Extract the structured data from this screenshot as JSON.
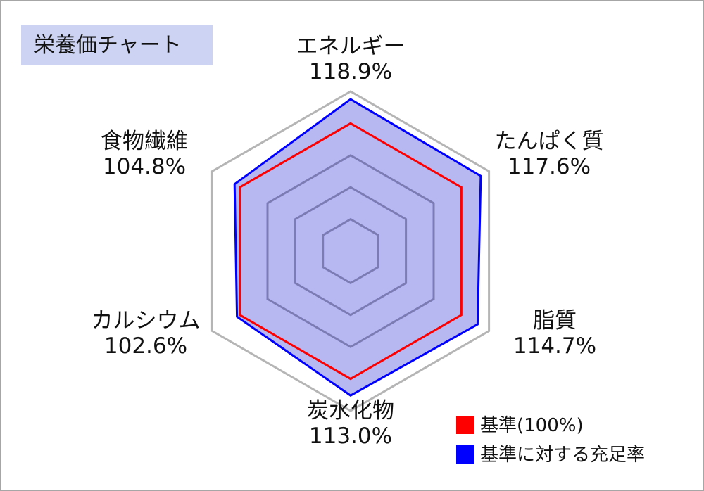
{
  "chart_data": {
    "type": "radar",
    "title": "栄養価チャート",
    "categories": [
      "エネルギー",
      "たんぱく質",
      "脂質",
      "炭水化物",
      "カルシウム",
      "食物繊維"
    ],
    "value_labels": [
      "118.9%",
      "117.6%",
      "114.7%",
      "113.0%",
      "102.6%",
      "104.8%"
    ],
    "rlim": [
      0,
      125
    ],
    "grid_levels": [
      25,
      50,
      75,
      100,
      125
    ],
    "series": [
      {
        "name": "基準(100%)",
        "values": [
          100,
          100,
          100,
          100,
          100,
          100
        ],
        "color": "#ff0000",
        "fill": "none"
      },
      {
        "name": "基準に対する充足率",
        "values": [
          118.9,
          117.6,
          114.7,
          113.0,
          102.6,
          104.8
        ],
        "color": "#0000ff",
        "fill": "#7b7be8"
      }
    ],
    "legend_position": "bottom-right",
    "grid_color_outer": "#b5b5b5",
    "grid_color_inner": "#7c7cae"
  }
}
